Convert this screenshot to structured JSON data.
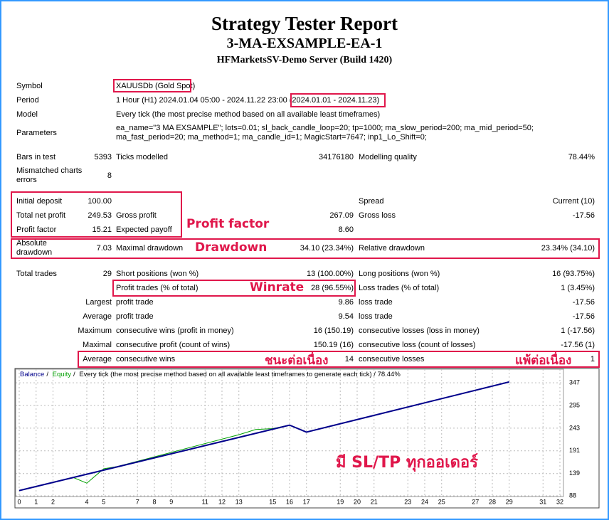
{
  "header": {
    "title": "Strategy Tester Report",
    "subtitle": "3-MA-EXSAMPLE-EA-1",
    "server": "HFMarketsSV-Demo Server (Build 1420)"
  },
  "settings": [
    {
      "label": "Symbol",
      "value": "XAUUSDb (Gold Spot)"
    },
    {
      "label": "Period",
      "value": "1 Hour (H1) 2024.01.04 05:00 - 2024.11.22 23:00",
      "note": "(2024.01.01 - 2024.11.23)"
    },
    {
      "label": "Model",
      "value": "Every tick (the most precise method based on all available least timeframes)"
    },
    {
      "label": "Parameters",
      "value": "ea_name=\"3 MA EXSAMPLE\"; lots=0.01; sl_back_candle_loop=20; tp=1000; ma_slow_period=200; ma_mid_period=50;\nma_fast_period=20; ma_method=1; ma_candle_id=1; MagicStart=7647; inp1_Lo_Shift=0;"
    }
  ],
  "groups": [
    [
      [
        "Bars in test",
        "5393",
        "Ticks modelled",
        "34176180",
        "Modelling quality",
        "78.44%"
      ],
      [
        "Mismatched charts\nerrors",
        "8",
        null,
        null,
        null,
        null
      ]
    ],
    [
      [
        "Initial deposit",
        "100.00",
        null,
        null,
        "Spread",
        "Current (10)"
      ],
      [
        "Total net profit",
        "249.53",
        "Gross profit",
        "267.09",
        "Gross loss",
        "-17.56"
      ],
      [
        "Profit factor",
        "15.21",
        "Expected payoff",
        "8.60",
        null,
        null
      ],
      [
        "Absolute\ndrawdown",
        "7.03",
        "Maximal drawdown",
        "34.10 (23.34%)",
        "Relative drawdown",
        "23.34% (34.10)"
      ]
    ],
    [
      [
        "Total trades",
        "29",
        "Short positions (won %)",
        "13 (100.00%)",
        "Long positions (won %)",
        "16 (93.75%)"
      ],
      [
        null,
        null,
        "Profit trades (% of total)",
        "28 (96.55%)",
        "Loss trades (% of total)",
        "1 (3.45%)"
      ],
      [
        null,
        "Largest",
        "profit trade",
        "9.86",
        "loss trade",
        "-17.56"
      ],
      [
        null,
        "Average",
        "profit trade",
        "9.54",
        "loss trade",
        "-17.56"
      ],
      [
        null,
        "Maximum",
        "consecutive wins (profit in money)",
        "16 (150.19)",
        "consecutive losses (loss in money)",
        "1 (-17.56)"
      ],
      [
        null,
        "Maximal",
        "consecutive profit (count of wins)",
        "150.19 (16)",
        "consecutive loss (count of losses)",
        "-17.56 (1)"
      ],
      [
        null,
        "Average",
        "consecutive wins",
        "14",
        "consecutive losses",
        "1"
      ]
    ]
  ],
  "annotations": {
    "profit_factor": "Profit factor",
    "drawdown": "Drawdown",
    "winrate": "Winrate",
    "win_streak": "ชนะต่อเนื่อง",
    "loss_streak": "แพ้ต่อเนื่อง",
    "chart_note": "มี SL/TP ทุกออเดอร์"
  },
  "chart_data": {
    "type": "line",
    "separator": "/",
    "subtitle": "Every tick (the most precise method based on all available least timeframes to generate each tick) / 78.44%",
    "series": [
      {
        "name": "Balance",
        "color": "#00008b",
        "x": [
          0,
          16,
          17,
          29
        ],
        "values": [
          100,
          250,
          234,
          349
        ]
      },
      {
        "name": "Equity",
        "color": "#00a000",
        "x": [
          0,
          3.2,
          4,
          5,
          5.8,
          13,
          14,
          15,
          16,
          17,
          29
        ],
        "values": [
          100,
          130,
          117,
          150,
          155,
          228,
          240,
          242,
          250,
          234,
          349
        ]
      }
    ],
    "xlim": [
      0,
      32
    ],
    "xticks": [
      0,
      1,
      2,
      4,
      5,
      7,
      8,
      9,
      11,
      12,
      13,
      15,
      16,
      17,
      19,
      20,
      21,
      23,
      24,
      25,
      27,
      28,
      29,
      31,
      32
    ],
    "ylim": [
      88,
      370
    ],
    "yticks": [
      88,
      139,
      191,
      243,
      295,
      347
    ],
    "grid": true
  }
}
